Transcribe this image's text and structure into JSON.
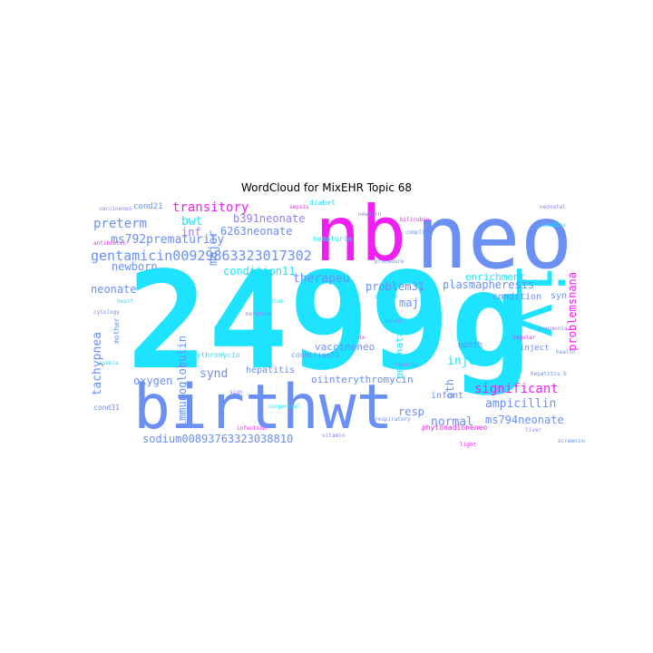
{
  "figure": {
    "title": "WordCloud for MixEHR Topic 68"
  },
  "colors": {
    "cyan": "#1ee3ff",
    "blue": "#6a8ff5",
    "magenta": "#f020f5",
    "lavender": "#9a7cf2"
  },
  "words": {
    "w2499g": "2499g",
    "birthwt": "birthwt",
    "neo": "neo",
    "nb": "nb",
    "iv": "iv",
    "gentamicin": "gentamicin00929863323017302",
    "sodium": "sodium00893763323038810",
    "ms792prematurity": "ms792prematurity",
    "transitory": "transitory",
    "preterm": "preterm",
    "bwt": "bwt",
    "inf": "inf",
    "b391neonate": "b391neonate",
    "n6263neonate": "6263neonate",
    "major": "major",
    "condition11": "condition11",
    "therapeu": "therapeu",
    "problem31": "problem31",
    "maj": "maj",
    "dist": "dist",
    "problemsnana": "problemsnana",
    "plasmapheresis": "plasmapheresis",
    "enrichment": "enrichment",
    "condition": "condition",
    "newborn": "newborn",
    "neonate": "neonate",
    "tachypnea": "tachypnea",
    "oxygen": "oxygen",
    "immunoglobulin": "immunoglobulin",
    "synd": "synd",
    "hepatitis": "hepatitis",
    "vaccineneo": "vaccineneo",
    "injct": "injct",
    "oth": "oth",
    "significant": "significant",
    "ampicillin": "ampicillin",
    "ms794neonate": "ms794neonate",
    "normal": "normal",
    "resp": "resp",
    "perinatal": "perinatal",
    "oiinterythromycin": "oiinterythromycin",
    "cond21": "cond21",
    "diabet": "diabet",
    "syn": "syn",
    "inject": "inject",
    "infant": "infant",
    "uphth": "uphth",
    "hematuria": "hematuria",
    "condition21": "condition21",
    "erythromycin": "erythromycin",
    "phytonadioneneo": "phytonadioneneo",
    "mother": "mother",
    "cond31": "cond31",
    "vaccineneo2": "vaccineneo",
    "antibiotic": "antibiotic",
    "system": "system",
    "procedure": "procedure",
    "sodium2": "sodium",
    "morphine": "morphine",
    "health": "health",
    "liver": "liver",
    "light": "light",
    "wound": "wound",
    "sign": "sign",
    "heart": "heart",
    "newborn2": "newborn",
    "bilirubin": "bilirubin",
    "complic": "complic",
    "feeding": "feeding",
    "anemia": "anemia",
    "respiratory": "respiratory",
    "dx": "dx",
    "pneumonia": "pneumonia",
    "admitting": "admitting",
    "regular": "regular",
    "cytology": "cytology",
    "congenital": "congenital",
    "infection": "infection",
    "screening": "screening",
    "neonatal": "neonatal",
    "jaundice": "jaundice",
    "hepatitisb": "hepatitis b",
    "vitamin": "vitamin",
    "sepsis": "sepsis"
  }
}
